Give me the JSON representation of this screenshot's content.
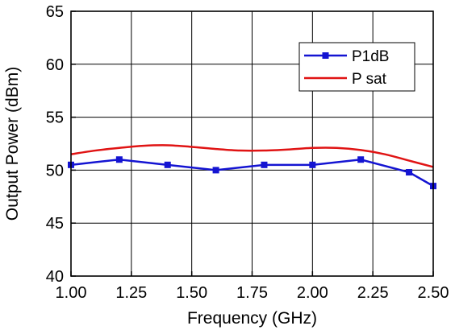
{
  "chart_data": {
    "type": "line",
    "xlabel": "Frequency  (GHz)",
    "ylabel": "Output Power  (dBm)",
    "xlim": [
      1.0,
      2.5
    ],
    "ylim": [
      40,
      65
    ],
    "x_ticks": [
      "1.00",
      "1.25",
      "1.50",
      "1.75",
      "2.00",
      "2.25",
      "2.50"
    ],
    "y_ticks": [
      "40",
      "45",
      "50",
      "55",
      "60",
      "65"
    ],
    "grid": true,
    "legend_position": "top-right",
    "series": [
      {
        "name": "P1dB",
        "color": "#1414d2",
        "marker": "square",
        "x": [
          1.0,
          1.2,
          1.4,
          1.6,
          1.8,
          2.0,
          2.2,
          2.4,
          2.5
        ],
        "y": [
          50.5,
          51.0,
          50.5,
          50.0,
          50.5,
          50.5,
          51.0,
          49.8,
          48.5
        ]
      },
      {
        "name": "P sat",
        "color": "#e01414",
        "marker": "none",
        "x": [
          1.0,
          1.1,
          1.2,
          1.3,
          1.4,
          1.5,
          1.6,
          1.7,
          1.8,
          1.9,
          2.0,
          2.1,
          2.2,
          2.3,
          2.4,
          2.5
        ],
        "y": [
          51.5,
          51.85,
          52.1,
          52.3,
          52.35,
          52.2,
          52.0,
          51.85,
          51.85,
          51.95,
          52.1,
          52.1,
          51.9,
          51.5,
          50.9,
          50.3
        ]
      }
    ]
  }
}
